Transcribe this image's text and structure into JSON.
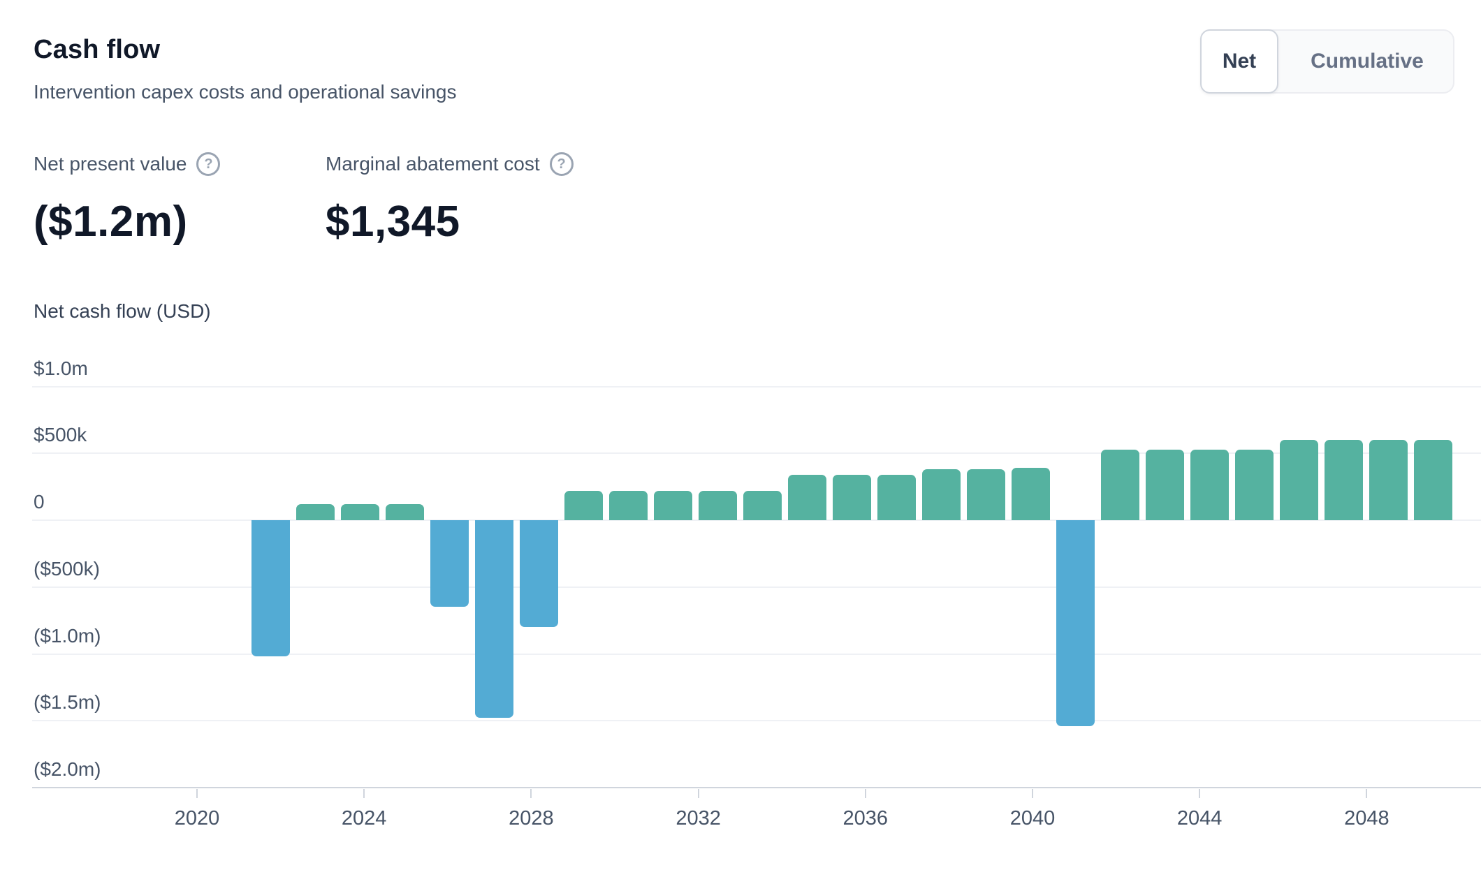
{
  "header": {
    "title": "Cash flow",
    "subtitle": "Intervention capex costs and operational savings"
  },
  "toggle": {
    "options": [
      {
        "label": "Net",
        "active": true
      },
      {
        "label": "Cumulative",
        "active": false
      }
    ]
  },
  "metrics": [
    {
      "label": "Net present value",
      "value": "($1.2m)",
      "help_icon": "question-mark-circle"
    },
    {
      "label": "Marginal abatement cost",
      "value": "$1,345",
      "help_icon": "question-mark-circle"
    }
  ],
  "chart_data": {
    "type": "bar",
    "title": "Net cash flow (USD)",
    "xlabel": "",
    "ylabel": "Net cash flow (USD)",
    "x": [
      2021,
      2022,
      2023,
      2024,
      2025,
      2026,
      2027,
      2028,
      2029,
      2030,
      2031,
      2032,
      2033,
      2034,
      2035,
      2036,
      2037,
      2038,
      2039,
      2040,
      2041,
      2042,
      2043,
      2044,
      2045,
      2046,
      2047
    ],
    "values": [
      -1020000,
      120000,
      120000,
      120000,
      -650000,
      -1480000,
      -800000,
      220000,
      220000,
      220000,
      220000,
      220000,
      340000,
      340000,
      340000,
      380000,
      380000,
      390000,
      -1540000,
      530000,
      530000,
      530000,
      530000,
      600000,
      600000,
      600000,
      600000
    ],
    "ylim": [
      -2000000,
      1000000
    ],
    "y_tick_values": [
      1000000,
      500000,
      0,
      -500000,
      -1000000,
      -1500000,
      -2000000
    ],
    "y_tick_labels": [
      "$1.0m",
      "$500k",
      "0",
      "($500k)",
      "($1.0m)",
      "($1.5m)",
      "($2.0m)"
    ],
    "x_tick_years": [
      2020,
      2024,
      2028,
      2032,
      2036,
      2040,
      2044,
      2048
    ],
    "grid": true,
    "legend": "none",
    "colors": {
      "positive": "#55b2a0",
      "negative": "#53abd4"
    }
  }
}
